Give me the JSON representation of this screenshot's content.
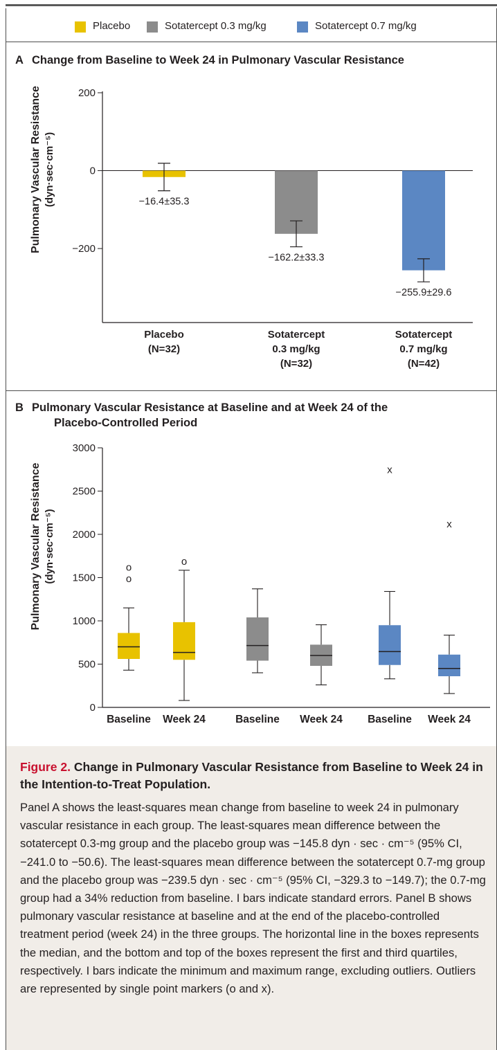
{
  "legend": [
    {
      "label": "Placebo",
      "color": "#e8c200"
    },
    {
      "label": "Sotatercept 0.3 mg/kg",
      "color": "#8c8c8c"
    },
    {
      "label": "Sotatercept 0.7 mg/kg",
      "color": "#5b87c3"
    }
  ],
  "panel_a": {
    "letter": "A",
    "title": "Change from Baseline to Week 24 in Pulmonary Vascular Resistance",
    "ylabel_line1": "Pulmonary Vascular Resistance",
    "ylabel_line2": "(dyn·sec·cm⁻⁵)"
  },
  "panel_b": {
    "letter": "B",
    "title_line1": "Pulmonary Vascular Resistance at Baseline and at Week 24 of the",
    "title_line2": "Placebo-Controlled Period",
    "ylabel_line1": "Pulmonary Vascular Resistance",
    "ylabel_line2": "(dyn·sec·cm⁻⁵)"
  },
  "chart_data": [
    {
      "type": "bar",
      "title": "Change from Baseline to Week 24 in Pulmonary Vascular Resistance",
      "ylabel": "Pulmonary Vascular Resistance (dyn·sec·cm⁻⁵)",
      "ylim": [
        -390,
        200
      ],
      "yticks": [
        200,
        0,
        -200
      ],
      "ytick_labels": [
        "200",
        "0",
        "−200"
      ],
      "categories": [
        [
          "Placebo",
          "(N=32)"
        ],
        [
          "Sotatercept",
          "0.3 mg/kg",
          "(N=32)"
        ],
        [
          "Sotatercept",
          "0.7 mg/kg",
          "(N=42)"
        ]
      ],
      "values": [
        -16.4,
        -162.2,
        -255.9
      ],
      "errors": [
        35.3,
        33.3,
        29.6
      ],
      "data_labels": [
        "−16.4±35.3",
        "−162.2±33.3",
        "−255.9±29.6"
      ],
      "colors": [
        "#e8c200",
        "#8c8c8c",
        "#5b87c3"
      ]
    },
    {
      "type": "box",
      "title": "Pulmonary Vascular Resistance at Baseline and at Week 24 of the Placebo-Controlled Period",
      "ylabel": "Pulmonary Vascular Resistance (dyn·sec·cm⁻⁵)",
      "ylim": [
        0,
        3000
      ],
      "yticks": [
        0,
        500,
        1000,
        1500,
        2000,
        2500,
        3000
      ],
      "categories": [
        "Baseline",
        "Week 24",
        "Baseline",
        "Week 24",
        "Baseline",
        "Week 24"
      ],
      "boxes": [
        {
          "group": "Placebo",
          "min": 430,
          "q1": 560,
          "median": 700,
          "q3": 860,
          "max": 1150,
          "outliers": [
            1620,
            1490
          ],
          "outlier_marker": "o",
          "color": "#e8c200"
        },
        {
          "group": "Placebo",
          "min": 80,
          "q1": 550,
          "median": 635,
          "q3": 985,
          "max": 1585,
          "outliers": [
            1690
          ],
          "outlier_marker": "o",
          "color": "#e8c200"
        },
        {
          "group": "Sotatercept 0.3 mg/kg",
          "min": 400,
          "q1": 540,
          "median": 715,
          "q3": 1040,
          "max": 1370,
          "outliers": [],
          "outlier_marker": "",
          "color": "#8c8c8c"
        },
        {
          "group": "Sotatercept 0.3 mg/kg",
          "min": 260,
          "q1": 480,
          "median": 600,
          "q3": 725,
          "max": 955,
          "outliers": [],
          "outlier_marker": "",
          "color": "#8c8c8c"
        },
        {
          "group": "Sotatercept 0.7 mg/kg",
          "min": 330,
          "q1": 490,
          "median": 645,
          "q3": 950,
          "max": 1340,
          "outliers": [
            2750
          ],
          "outlier_marker": "x",
          "color": "#5b87c3"
        },
        {
          "group": "Sotatercept 0.7 mg/kg",
          "min": 160,
          "q1": 360,
          "median": 450,
          "q3": 610,
          "max": 835,
          "outliers": [
            2120
          ],
          "outlier_marker": "x",
          "color": "#5b87c3"
        }
      ]
    }
  ],
  "caption": {
    "label": "Figure 2.",
    "title": "Change in Pulmonary Vascular Resistance from Baseline to Week 24 in the Intention-to-Treat Population.",
    "body": "Panel A shows the least-squares mean change from baseline to week 24 in pulmonary vascular resistance in each group. The least-squares mean difference between the sotatercept 0.3-mg group and the placebo group was −145.8 dyn · sec · cm⁻⁵ (95% CI, −241.0 to −50.6). The least-squares mean difference between the sotatercept 0.7-mg group and the placebo group was −239.5 dyn · sec · cm⁻⁵ (95% CI, −329.3 to −149.7); the 0.7-mg group had a 34% reduction from baseline. I bars indicate standard errors. Panel B shows pulmonary vascular resistance at baseline and at the end of the placebo-controlled treatment period (week 24) in the three groups. The horizontal line in the boxes represents the median, and the bottom and top of the boxes represent the first and third quartiles, respectively. I bars indicate the minimum and maximum range, excluding outliers. Outliers are represented by single point markers (o and x)."
  }
}
